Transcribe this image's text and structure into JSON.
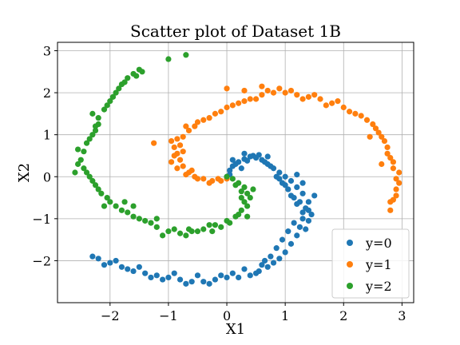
{
  "chart_data": {
    "type": "scatter",
    "title": "Scatter plot of Dataset 1B",
    "xlabel": "X1",
    "ylabel": "X2",
    "xlim": [
      -2.9,
      3.2
    ],
    "ylim": [
      -3.0,
      3.2
    ],
    "xticks": [
      -2,
      -1,
      0,
      1,
      2,
      3
    ],
    "yticks": [
      -2,
      -1,
      0,
      1,
      2,
      3
    ],
    "xtick_labels": [
      "−2",
      "−1",
      "0",
      "1",
      "2",
      "3"
    ],
    "ytick_labels": [
      "−2",
      "−1",
      "0",
      "1",
      "2",
      "3"
    ],
    "grid": true,
    "legend_position": "lower-right",
    "series": [
      {
        "name": "y=0",
        "color": "#1f77b4",
        "points": [
          [
            0.0,
            0.0
          ],
          [
            0.05,
            0.15
          ],
          [
            0.1,
            0.25
          ],
          [
            0.2,
            0.35
          ],
          [
            0.3,
            0.42
          ],
          [
            0.4,
            0.48
          ],
          [
            0.5,
            0.45
          ],
          [
            0.6,
            0.4
          ],
          [
            0.7,
            0.3
          ],
          [
            0.8,
            0.2
          ],
          [
            0.9,
            0.1
          ],
          [
            1.0,
            0.0
          ],
          [
            1.1,
            -0.1
          ],
          [
            1.2,
            -0.25
          ],
          [
            1.3,
            -0.4
          ],
          [
            1.4,
            -0.6
          ],
          [
            1.4,
            -0.8
          ],
          [
            1.3,
            -1.0
          ],
          [
            1.25,
            -1.2
          ],
          [
            1.2,
            -1.4
          ],
          [
            1.1,
            -1.6
          ],
          [
            1.0,
            -1.8
          ],
          [
            0.9,
            -1.95
          ],
          [
            0.8,
            -2.05
          ],
          [
            0.7,
            -2.15
          ],
          [
            0.55,
            -2.25
          ],
          [
            0.4,
            -2.35
          ],
          [
            0.2,
            -2.4
          ],
          [
            0.0,
            -2.4
          ],
          [
            -0.2,
            -2.45
          ],
          [
            -0.4,
            -2.5
          ],
          [
            -0.6,
            -2.5
          ],
          [
            -0.8,
            -2.45
          ],
          [
            -1.0,
            -2.4
          ],
          [
            -1.2,
            -2.35
          ],
          [
            -1.4,
            -2.3
          ],
          [
            -1.6,
            -2.25
          ],
          [
            -1.8,
            -2.15
          ],
          [
            -2.0,
            -2.05
          ],
          [
            -2.2,
            -1.95
          ],
          [
            0.15,
            0.3
          ],
          [
            0.25,
            0.2
          ],
          [
            0.35,
            0.38
          ],
          [
            0.45,
            0.5
          ],
          [
            0.55,
            0.52
          ],
          [
            0.65,
            0.35
          ],
          [
            0.75,
            0.25
          ],
          [
            0.85,
            0.0
          ],
          [
            0.95,
            -0.15
          ],
          [
            1.05,
            -0.3
          ],
          [
            1.15,
            -0.5
          ],
          [
            1.25,
            -0.6
          ],
          [
            1.35,
            -0.75
          ],
          [
            1.45,
            -0.9
          ],
          [
            1.3,
            -0.85
          ],
          [
            1.2,
            -0.65
          ],
          [
            1.1,
            -0.45
          ],
          [
            1.0,
            -0.2
          ],
          [
            0.9,
            -0.05
          ],
          [
            1.15,
            -1.1
          ],
          [
            1.05,
            -1.3
          ],
          [
            0.95,
            -1.5
          ],
          [
            0.85,
            -1.7
          ],
          [
            0.75,
            -1.9
          ],
          [
            0.6,
            -2.1
          ],
          [
            0.5,
            -2.3
          ],
          [
            0.3,
            -2.2
          ],
          [
            0.1,
            -2.3
          ],
          [
            -0.1,
            -2.35
          ],
          [
            -0.3,
            -2.55
          ],
          [
            -0.5,
            -2.35
          ],
          [
            -0.7,
            -2.55
          ],
          [
            -0.9,
            -2.3
          ],
          [
            -1.1,
            -2.45
          ],
          [
            -1.3,
            -2.4
          ],
          [
            -1.5,
            -2.15
          ],
          [
            -1.7,
            -2.2
          ],
          [
            -1.9,
            -2.0
          ],
          [
            -2.1,
            -2.1
          ],
          [
            -2.3,
            -1.9
          ],
          [
            1.5,
            -0.45
          ],
          [
            1.4,
            -1.05
          ],
          [
            1.35,
            -1.25
          ],
          [
            0.05,
            0.05
          ],
          [
            0.1,
            0.4
          ],
          [
            0.3,
            0.55
          ],
          [
            0.7,
            0.48
          ],
          [
            1.2,
            0.05
          ],
          [
            1.3,
            -0.15
          ],
          [
            0.65,
            -2.0
          ]
        ]
      },
      {
        "name": "y=1",
        "color": "#ff7f0e",
        "points": [
          [
            0.0,
            -0.05
          ],
          [
            -0.1,
            -0.1
          ],
          [
            -0.25,
            -0.1
          ],
          [
            -0.4,
            -0.05
          ],
          [
            -0.55,
            0.0
          ],
          [
            -0.65,
            0.1
          ],
          [
            -0.75,
            0.25
          ],
          [
            -0.8,
            0.4
          ],
          [
            -0.85,
            0.55
          ],
          [
            -0.8,
            0.75
          ],
          [
            -0.75,
            0.95
          ],
          [
            -0.65,
            1.1
          ],
          [
            -0.55,
            1.2
          ],
          [
            -0.4,
            1.35
          ],
          [
            -0.2,
            1.5
          ],
          [
            0.0,
            1.65
          ],
          [
            0.2,
            1.75
          ],
          [
            0.4,
            1.85
          ],
          [
            0.6,
            1.95
          ],
          [
            0.8,
            2.0
          ],
          [
            1.0,
            2.0
          ],
          [
            1.2,
            1.95
          ],
          [
            1.4,
            1.9
          ],
          [
            1.6,
            1.85
          ],
          [
            1.8,
            1.75
          ],
          [
            2.0,
            1.65
          ],
          [
            2.2,
            1.5
          ],
          [
            2.4,
            1.35
          ],
          [
            2.55,
            1.15
          ],
          [
            2.65,
            0.95
          ],
          [
            2.75,
            0.7
          ],
          [
            2.8,
            0.45
          ],
          [
            2.85,
            0.2
          ],
          [
            2.9,
            -0.05
          ],
          [
            2.9,
            -0.3
          ],
          [
            2.85,
            -0.55
          ],
          [
            2.8,
            -0.8
          ],
          [
            -0.3,
            -0.15
          ],
          [
            -0.5,
            -0.05
          ],
          [
            -0.7,
            0.05
          ],
          [
            -0.85,
            0.2
          ],
          [
            -0.95,
            0.35
          ],
          [
            -0.9,
            0.5
          ],
          [
            -0.9,
            0.7
          ],
          [
            -0.85,
            0.9
          ],
          [
            -0.7,
            1.2
          ],
          [
            -0.5,
            1.3
          ],
          [
            -0.3,
            1.4
          ],
          [
            -0.1,
            1.55
          ],
          [
            0.1,
            1.7
          ],
          [
            0.3,
            1.8
          ],
          [
            0.5,
            1.85
          ],
          [
            0.7,
            2.05
          ],
          [
            0.9,
            2.1
          ],
          [
            1.1,
            2.05
          ],
          [
            1.3,
            1.85
          ],
          [
            1.5,
            1.95
          ],
          [
            1.7,
            1.7
          ],
          [
            1.9,
            1.8
          ],
          [
            2.1,
            1.55
          ],
          [
            2.3,
            1.45
          ],
          [
            2.5,
            1.25
          ],
          [
            2.6,
            1.05
          ],
          [
            2.7,
            0.85
          ],
          [
            2.75,
            0.55
          ],
          [
            2.85,
            0.35
          ],
          [
            2.95,
            0.1
          ],
          [
            2.95,
            -0.15
          ],
          [
            2.9,
            -0.45
          ],
          [
            -1.25,
            0.8
          ],
          [
            0.0,
            2.1
          ],
          [
            0.3,
            2.05
          ],
          [
            0.6,
            2.15
          ],
          [
            -0.15,
            -0.05
          ],
          [
            -0.6,
            0.15
          ],
          [
            -0.75,
            0.6
          ],
          [
            -0.95,
            0.85
          ],
          [
            2.45,
            0.95
          ],
          [
            2.65,
            0.3
          ],
          [
            2.8,
            -0.6
          ]
        ]
      },
      {
        "name": "y=2",
        "color": "#2ca02c",
        "points": [
          [
            0.0,
            0.0
          ],
          [
            0.1,
            -0.05
          ],
          [
            0.2,
            -0.15
          ],
          [
            0.3,
            -0.25
          ],
          [
            0.35,
            -0.4
          ],
          [
            0.3,
            -0.6
          ],
          [
            0.25,
            -0.8
          ],
          [
            0.15,
            -0.95
          ],
          [
            0.0,
            -1.05
          ],
          [
            -0.2,
            -1.15
          ],
          [
            -0.4,
            -1.25
          ],
          [
            -0.6,
            -1.3
          ],
          [
            -0.8,
            -1.35
          ],
          [
            -1.0,
            -1.3
          ],
          [
            -1.2,
            -1.2
          ],
          [
            -1.4,
            -1.05
          ],
          [
            -1.6,
            -0.95
          ],
          [
            -1.8,
            -0.8
          ],
          [
            -2.0,
            -0.6
          ],
          [
            -2.15,
            -0.4
          ],
          [
            -2.25,
            -0.2
          ],
          [
            -2.35,
            0.0
          ],
          [
            -2.45,
            0.2
          ],
          [
            -2.5,
            0.4
          ],
          [
            -2.45,
            0.6
          ],
          [
            -2.4,
            0.8
          ],
          [
            -2.3,
            1.0
          ],
          [
            -2.25,
            1.2
          ],
          [
            -2.2,
            1.4
          ],
          [
            -2.1,
            1.6
          ],
          [
            -2.0,
            1.8
          ],
          [
            -1.9,
            2.0
          ],
          [
            -1.8,
            2.2
          ],
          [
            -1.7,
            2.35
          ],
          [
            -1.6,
            2.45
          ],
          [
            -1.5,
            2.55
          ],
          [
            0.15,
            -0.2
          ],
          [
            0.25,
            -0.35
          ],
          [
            0.4,
            -0.5
          ],
          [
            0.35,
            -0.7
          ],
          [
            0.2,
            -0.9
          ],
          [
            0.05,
            -1.1
          ],
          [
            -0.1,
            -1.2
          ],
          [
            -0.3,
            -1.15
          ],
          [
            -0.5,
            -1.3
          ],
          [
            -0.7,
            -1.4
          ],
          [
            -0.9,
            -1.25
          ],
          [
            -1.1,
            -1.4
          ],
          [
            -1.3,
            -1.1
          ],
          [
            -1.5,
            -1.0
          ],
          [
            -1.7,
            -0.85
          ],
          [
            -1.9,
            -0.7
          ],
          [
            -2.05,
            -0.5
          ],
          [
            -2.2,
            -0.3
          ],
          [
            -2.3,
            -0.1
          ],
          [
            -2.4,
            0.1
          ],
          [
            -2.55,
            0.3
          ],
          [
            -2.55,
            0.65
          ],
          [
            -2.35,
            0.9
          ],
          [
            -2.25,
            1.1
          ],
          [
            -2.3,
            1.5
          ],
          [
            -2.05,
            1.7
          ],
          [
            -1.95,
            1.9
          ],
          [
            -1.85,
            2.1
          ],
          [
            -1.75,
            2.25
          ],
          [
            -1.55,
            2.4
          ],
          [
            -1.45,
            2.5
          ],
          [
            -1.0,
            2.8
          ],
          [
            -0.7,
            2.9
          ],
          [
            0.45,
            -0.3
          ],
          [
            0.35,
            -0.95
          ],
          [
            -0.65,
            -1.25
          ],
          [
            -1.2,
            -1.0
          ],
          [
            -1.6,
            -0.7
          ],
          [
            -2.1,
            -0.7
          ],
          [
            -2.6,
            0.1
          ],
          [
            -2.2,
            1.25
          ],
          [
            0.25,
            -0.5
          ],
          [
            -0.25,
            -1.3
          ],
          [
            -1.75,
            -0.6
          ]
        ]
      }
    ]
  }
}
